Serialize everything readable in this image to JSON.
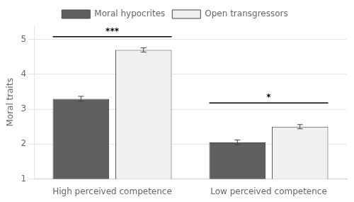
{
  "chart_data": {
    "type": "bar",
    "categories": [
      "High perceived competence",
      "Low perceived competence"
    ],
    "series": [
      {
        "name": "Moral hypocrites",
        "color": "#606060",
        "values": [
          3.3,
          2.05
        ],
        "errors": [
          0.07,
          0.07
        ]
      },
      {
        "name": "Open transgressors",
        "color": "#f0f0f0",
        "values": [
          4.7,
          2.5
        ],
        "errors": [
          0.06,
          0.06
        ]
      }
    ],
    "ylabel": "Moral traits",
    "ylim": [
      1,
      5.4
    ],
    "yticks": [
      1,
      2,
      3,
      4,
      5
    ],
    "grid": true,
    "legend": "top",
    "annotations": [
      {
        "text": "***",
        "y": 5.08,
        "category": "High perceived competence"
      },
      {
        "text": "*",
        "y": 3.18,
        "category": "Low perceived competence"
      }
    ]
  }
}
